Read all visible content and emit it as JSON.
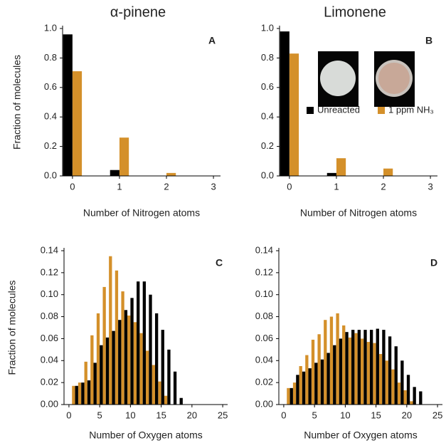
{
  "chart_data": [
    {
      "type": "bar",
      "title": "α-pinene",
      "panel_label": "A",
      "x_label": "Number of Nitrogen atoms",
      "y_label": "Fraction of molecules",
      "x": [
        0,
        1,
        2,
        3
      ],
      "xlim": [
        -0.21,
        3.15
      ],
      "xticks": [
        0,
        1,
        2,
        3
      ],
      "ylim": [
        0,
        1
      ],
      "yticks": [
        {
          "value": 0,
          "label": "0.0"
        },
        {
          "value": 0.2,
          "label": "0.2"
        },
        {
          "value": 0.4,
          "label": "0.4"
        },
        {
          "value": 0.6,
          "label": "0.6"
        },
        {
          "value": 0.8,
          "label": "0.8"
        },
        {
          "value": 1,
          "label": "1.0"
        }
      ],
      "series": [
        {
          "color": "#000000",
          "values": [
            0.96,
            0.04,
            0,
            0
          ]
        },
        {
          "color": "#d4902a",
          "values": [
            0.71,
            0.26,
            0.02,
            0
          ]
        }
      ]
    },
    {
      "type": "bar",
      "title": "Limonene",
      "panel_label": "B",
      "x_label": "Number of Nitrogen atoms",
      "x": [
        0,
        1,
        2,
        3
      ],
      "xlim": [
        -0.21,
        3.15
      ],
      "xticks": [
        0,
        1,
        2,
        3
      ],
      "ylim": [
        0,
        1
      ],
      "yticks": [
        {
          "value": 0,
          "label": "0.0"
        },
        {
          "value": 0.2,
          "label": "0.2"
        },
        {
          "value": 0.4,
          "label": "0.4"
        },
        {
          "value": 0.6,
          "label": "0.6"
        },
        {
          "value": 0.8,
          "label": "0.8"
        },
        {
          "value": 1,
          "label": "1.0"
        }
      ],
      "legend": "right",
      "series": [
        {
          "name": "Unreacted",
          "color": "#000000",
          "values": [
            0.98,
            0.02,
            0,
            0
          ]
        },
        {
          "name": "1 ppm NH₃",
          "color": "#d4902a",
          "values": [
            0.83,
            0.12,
            0.05,
            0
          ]
        }
      ]
    },
    {
      "type": "bar",
      "panel_label": "C",
      "x_label": "Number of Oxygen atoms",
      "y_label": "Fraction of molecules",
      "x": [
        1,
        2,
        3,
        4,
        5,
        6,
        7,
        8,
        9,
        10,
        11,
        12,
        13,
        14,
        15,
        16,
        17,
        18
      ],
      "xlim": [
        -0.8,
        25.8
      ],
      "xticks": [
        0,
        5,
        10,
        15,
        20,
        25
      ],
      "ylim": [
        0,
        0.14
      ],
      "yticks": [
        {
          "value": 0,
          "label": "0.00"
        },
        {
          "value": 0.02,
          "label": "0.02"
        },
        {
          "value": 0.04,
          "label": "0.04"
        },
        {
          "value": 0.06,
          "label": "0.06"
        },
        {
          "value": 0.08,
          "label": "0.08"
        },
        {
          "value": 0.1,
          "label": "0.10"
        },
        {
          "value": 0.12,
          "label": "0.12"
        },
        {
          "value": 0.14,
          "label": "0.14"
        }
      ],
      "series": [
        {
          "color": "#d4902a",
          "values": [
            0.017,
            0.02,
            0.039,
            0.063,
            0.083,
            0.107,
            0.135,
            0.122,
            0.103,
            0.081,
            0.075,
            0.065,
            0.049,
            0.036,
            0.021,
            0.008,
            0,
            0
          ]
        },
        {
          "color": "#000000",
          "values": [
            0.017,
            0.02,
            0.022,
            0.038,
            0.054,
            0.061,
            0.067,
            0.077,
            0.086,
            0.097,
            0.112,
            0.112,
            0.1,
            0.083,
            0.068,
            0.05,
            0.03,
            0.006
          ]
        }
      ]
    },
    {
      "type": "bar",
      "panel_label": "D",
      "x_label": "Number of Oxygen atoms",
      "x": [
        1,
        2,
        3,
        4,
        5,
        6,
        7,
        8,
        9,
        10,
        11,
        12,
        13,
        14,
        15,
        16,
        17,
        18,
        19,
        20,
        21,
        22
      ],
      "xlim": [
        -0.8,
        25.8
      ],
      "xticks": [
        0,
        5,
        10,
        15,
        20,
        25
      ],
      "ylim": [
        0,
        0.14
      ],
      "yticks": [
        {
          "value": 0,
          "label": "0.00"
        },
        {
          "value": 0.02,
          "label": "0.02"
        },
        {
          "value": 0.04,
          "label": "0.04"
        },
        {
          "value": 0.06,
          "label": "0.06"
        },
        {
          "value": 0.08,
          "label": "0.08"
        },
        {
          "value": 0.1,
          "label": "0.10"
        },
        {
          "value": 0.12,
          "label": "0.12"
        },
        {
          "value": 0.14,
          "label": "0.14"
        }
      ],
      "series": [
        {
          "color": "#d4902a",
          "values": [
            0.015,
            0.02,
            0.035,
            0.045,
            0.059,
            0.064,
            0.077,
            0.08,
            0.083,
            0.072,
            0.061,
            0.065,
            0.06,
            0.057,
            0.056,
            0.046,
            0.04,
            0.032,
            0.02,
            0.013,
            0.003,
            0
          ]
        },
        {
          "color": "#000000",
          "values": [
            0.015,
            0.027,
            0.03,
            0.033,
            0.038,
            0.041,
            0.047,
            0.054,
            0.06,
            0.066,
            0.068,
            0.068,
            0.068,
            0.068,
            0.069,
            0.068,
            0.062,
            0.053,
            0.04,
            0.027,
            0.016,
            0.012
          ]
        }
      ]
    }
  ]
}
